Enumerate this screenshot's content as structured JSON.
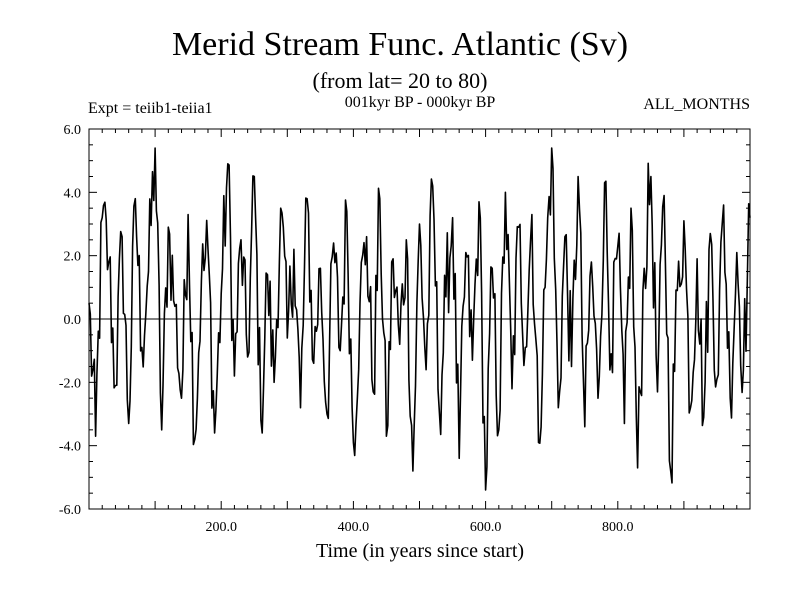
{
  "chart_data": {
    "type": "line",
    "title": "Merid Stream Func. Atlantic (Sv)",
    "subtitle": "(from lat= 20 to 80)",
    "header_left": "Expt = teiib1-teiia1",
    "header_center": "001kyr BP - 000kyr BP",
    "header_right": "ALL_MONTHS",
    "xlabel": "Time (in years since start)",
    "ylabel": "",
    "xlim": [
      0,
      1000
    ],
    "ylim": [
      -6,
      6
    ],
    "x_ticks": [
      {
        "value": 200,
        "label": "200.0"
      },
      {
        "value": 400,
        "label": "400.0"
      },
      {
        "value": 600,
        "label": "600.0"
      },
      {
        "value": 800,
        "label": "800.0"
      }
    ],
    "y_ticks": [
      {
        "value": -6,
        "label": "-6.0"
      },
      {
        "value": -4,
        "label": "-4.0"
      },
      {
        "value": -2,
        "label": "-2.0"
      },
      {
        "value": 0,
        "label": "0.0"
      },
      {
        "value": 2,
        "label": "2.0"
      },
      {
        "value": 4,
        "label": "4.0"
      },
      {
        "value": 6,
        "label": "6.0"
      }
    ],
    "zero_line": true,
    "grid": false,
    "series": [
      {
        "color": "#000000",
        "x": [
          0,
          10,
          20,
          30,
          40,
          50,
          60,
          70,
          80,
          90,
          100,
          110,
          120,
          130,
          140,
          150,
          160,
          170,
          180,
          190,
          200,
          210,
          220,
          230,
          240,
          250,
          260,
          270,
          280,
          290,
          300,
          310,
          320,
          330,
          340,
          350,
          360,
          370,
          380,
          390,
          400,
          410,
          420,
          430,
          440,
          450,
          460,
          470,
          480,
          490,
          500,
          510,
          520,
          530,
          540,
          550,
          560,
          570,
          580,
          590,
          600,
          610,
          620,
          630,
          640,
          650,
          660,
          670,
          680,
          690,
          700,
          710,
          720,
          730,
          740,
          750,
          760,
          770,
          780,
          790,
          800,
          810,
          820,
          830,
          840,
          850,
          860,
          870,
          880,
          890,
          900,
          910,
          920,
          930,
          940,
          950,
          960,
          970,
          980,
          990,
          1000
        ],
        "y": [
          0.5,
          -3.7,
          3.2,
          1.8,
          -2.1,
          2.6,
          -3.3,
          3.8,
          -0.9,
          1.5,
          5.4,
          -3.5,
          2.9,
          0.4,
          -2.5,
          3.3,
          -3.8,
          1.2,
          2.2,
          -3.6,
          0.8,
          4.9,
          -1.8,
          2.5,
          -1.2,
          4.5,
          -3.2,
          1.4,
          -2.0,
          3.5,
          -0.6,
          2.2,
          -2.8,
          3.8,
          -1.4,
          1.6,
          -3.0,
          2.4,
          -1.0,
          3.4,
          -3.9,
          0.5,
          2.6,
          -2.3,
          3.8,
          -3.7,
          1.9,
          -0.8,
          2.5,
          -4.8,
          3.0,
          -1.6,
          4.2,
          -2.9,
          0.7,
          3.2,
          -4.4,
          2.1,
          -1.3,
          3.7,
          -5.4,
          1.6,
          -3.5,
          4.0,
          -2.2,
          2.9,
          -0.9,
          3.3,
          -3.9,
          1.0,
          5.4,
          -2.8,
          2.6,
          -1.5,
          4.5,
          -3.4,
          1.8,
          -2.5,
          4.3,
          -1.1,
          2.3,
          -3.3,
          3.5,
          -4.7,
          1.6,
          4.5,
          -2.3,
          3.9,
          -4.8,
          0.9,
          3.1,
          -2.8,
          1.9,
          -3.1,
          2.7,
          -1.9,
          3.6,
          -2.5,
          2.1,
          -1.6,
          3.2
        ]
      }
    ]
  }
}
